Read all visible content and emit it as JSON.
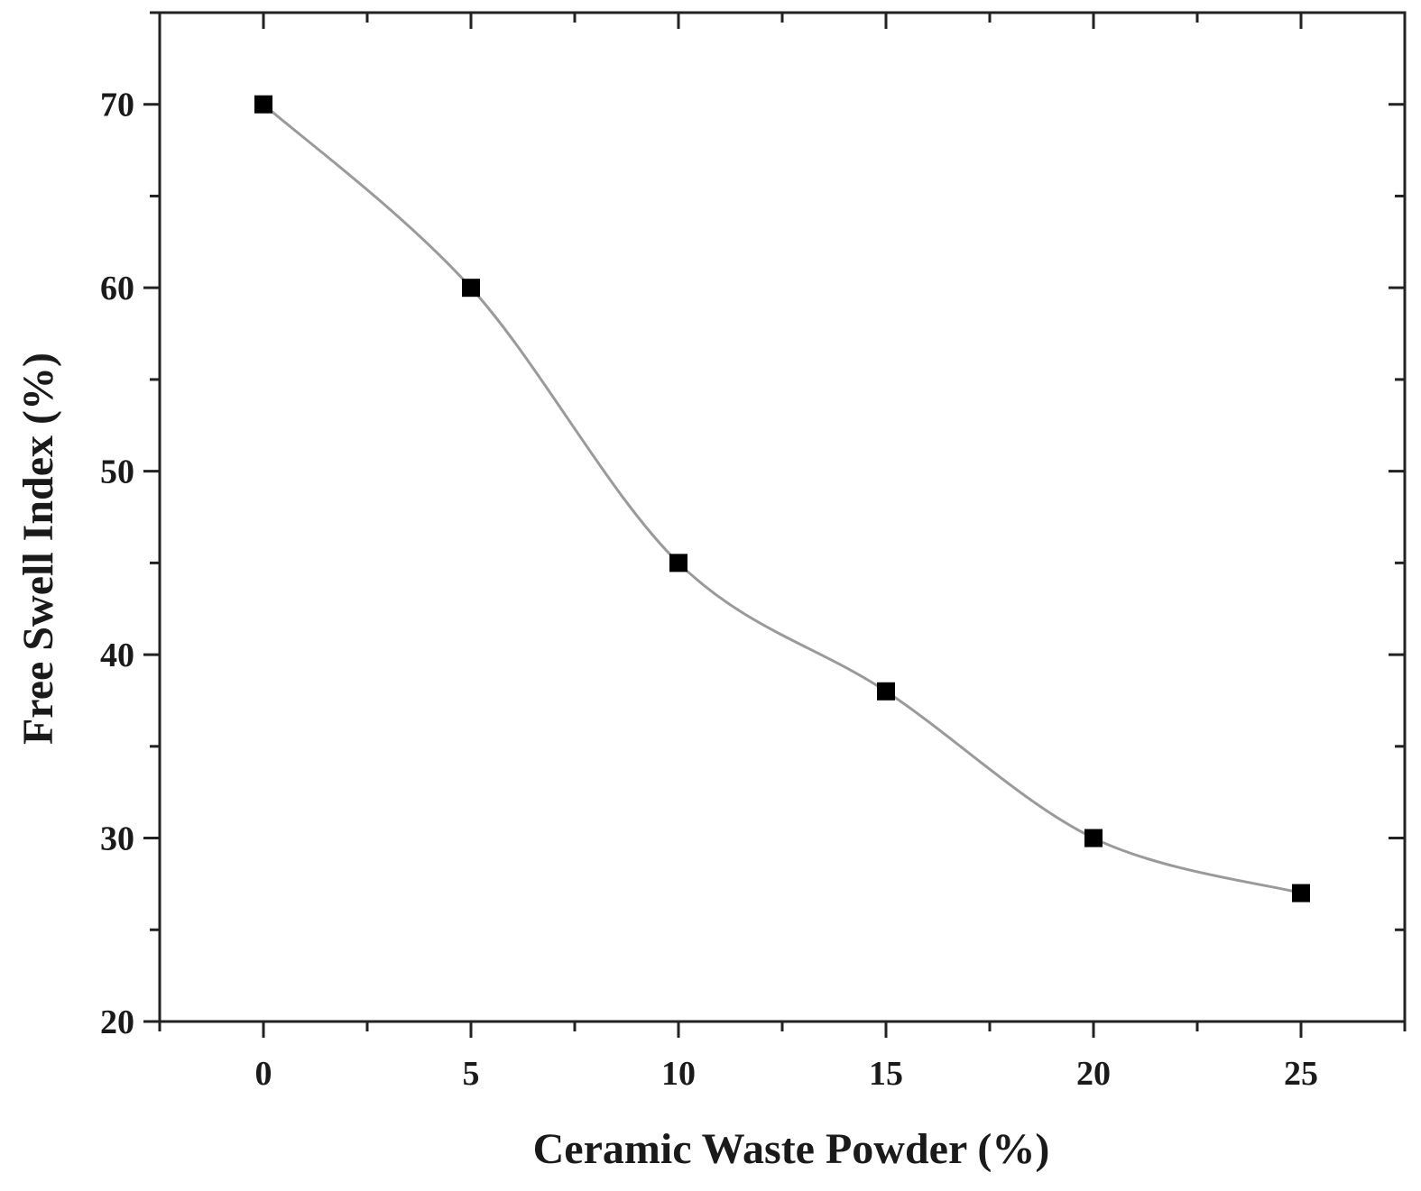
{
  "chart_data": {
    "type": "scatter",
    "title": "",
    "xlabel": "Ceramic Waste Powder (%)",
    "ylabel": "Free Swell Index (%)",
    "xlim": [
      -2.5,
      27.5
    ],
    "ylim": [
      20,
      75
    ],
    "x_ticks": [
      0,
      5,
      10,
      15,
      20,
      25
    ],
    "y_ticks": [
      20,
      30,
      40,
      50,
      60,
      70
    ],
    "x_tick_labels": [
      "0",
      "5",
      "10",
      "15",
      "20",
      "25"
    ],
    "y_tick_labels": [
      "20",
      "30",
      "40",
      "50",
      "60",
      "70"
    ],
    "grid": false,
    "legend": "none",
    "series": [
      {
        "x": [
          0,
          5,
          10,
          15,
          20,
          25
        ],
        "y": [
          70,
          60,
          45,
          38,
          30,
          27
        ],
        "marker": "square",
        "marker_color": "#000000",
        "fit_line": true,
        "fit_line_color": "#9a9a9a"
      }
    ]
  }
}
